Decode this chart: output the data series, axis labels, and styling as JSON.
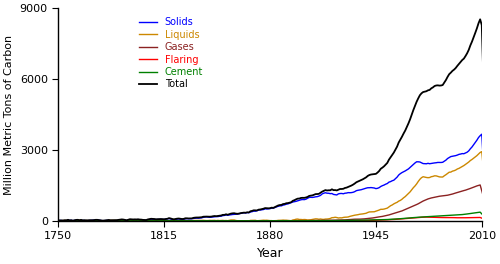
{
  "xlabel": "Year",
  "ylabel": "Million Metric Tons of Carbon",
  "xlim": [
    1750,
    2010
  ],
  "ylim": [
    0,
    9000
  ],
  "xticks": [
    1750,
    1815,
    1880,
    1945,
    2010
  ],
  "yticks": [
    0,
    3000,
    6000,
    9000
  ],
  "legend_labels": [
    "Solids",
    "Liquids",
    "Gases",
    "Flaring",
    "Cement",
    "Total"
  ],
  "legend_colors": [
    "blue",
    "#cc8800",
    "#8b2222",
    "red",
    "green",
    "black"
  ],
  "line_colors": [
    "blue",
    "#cc8800",
    "#8b2222",
    "red",
    "green",
    "black"
  ]
}
